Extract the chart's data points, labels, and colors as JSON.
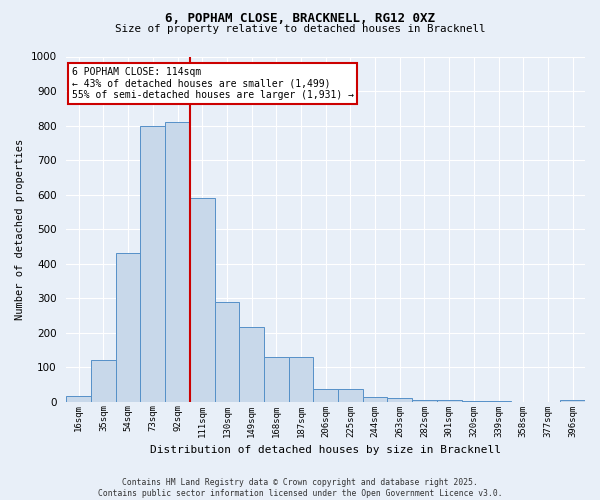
{
  "title1": "6, POPHAM CLOSE, BRACKNELL, RG12 0XZ",
  "title2": "Size of property relative to detached houses in Bracknell",
  "xlabel": "Distribution of detached houses by size in Bracknell",
  "ylabel": "Number of detached properties",
  "bar_labels": [
    "16sqm",
    "35sqm",
    "54sqm",
    "73sqm",
    "92sqm",
    "111sqm",
    "130sqm",
    "149sqm",
    "168sqm",
    "187sqm",
    "206sqm",
    "225sqm",
    "244sqm",
    "263sqm",
    "282sqm",
    "301sqm",
    "320sqm",
    "339sqm",
    "358sqm",
    "377sqm",
    "396sqm"
  ],
  "bar_values": [
    15,
    120,
    430,
    800,
    810,
    590,
    290,
    215,
    130,
    130,
    37,
    38,
    12,
    10,
    6,
    5,
    3,
    1,
    0,
    0,
    5
  ],
  "bar_color": "#c8d8ea",
  "bar_edge_color": "#5590c8",
  "property_line_index": 5,
  "annotation_title": "6 POPHAM CLOSE: 114sqm",
  "annotation_line1": "← 43% of detached houses are smaller (1,499)",
  "annotation_line2": "55% of semi-detached houses are larger (1,931) →",
  "annotation_box_color": "#ffffff",
  "annotation_box_edge": "#cc0000",
  "vline_color": "#cc0000",
  "ylim": [
    0,
    1000
  ],
  "yticks": [
    0,
    100,
    200,
    300,
    400,
    500,
    600,
    700,
    800,
    900,
    1000
  ],
  "footer1": "Contains HM Land Registry data © Crown copyright and database right 2025.",
  "footer2": "Contains public sector information licensed under the Open Government Licence v3.0.",
  "bg_color": "#e8eff8",
  "grid_color": "#ffffff"
}
